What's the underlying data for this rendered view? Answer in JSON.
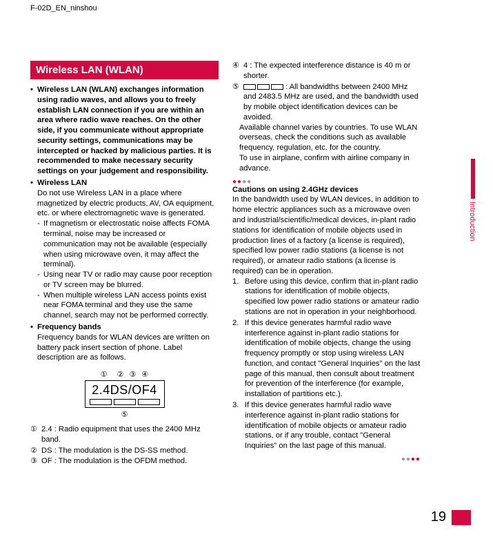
{
  "doc_header": "F-02D_EN_ninshou",
  "section_title": "Wireless LAN (WLAN)",
  "intro_bold": "Wireless LAN (WLAN) exchanges information using radio waves, and allows you to freely establish LAN connection if you are within an area where radio wave reaches. On the other side, if you communicate without appropriate security settings, communications may be intercepted or hacked by malicious parties. It is recommended to make necessary security settings on your judgement and responsibility.",
  "wlan_heading": "Wireless LAN",
  "wlan_body": "Do not use Wireless LAN in a place where magnetized by electric products, AV, OA equipment, etc. or where electromagnetic wave is generated.",
  "wlan_dash": [
    "If magnetism or electrostatic noise affects FOMA terminal, noise may be increased or communication may not be available (especially when using microwave oven, it may affect the terminal).",
    "Using near TV or radio may cause poor reception or TV screen may be blurred.",
    "When multiple wireless LAN access points exist near FOMA terminal and they use the same channel, search may not be performed correctly."
  ],
  "freq_heading": "Frequency bands",
  "freq_body": "Frequency bands for WLAN devices are written on battery pack insert section of phone. Label description are as follows.",
  "diagram": {
    "labels_top": [
      "①",
      "②",
      "③",
      "④"
    ],
    "text": "2.4DS/OF4",
    "label_bottom": "⑤"
  },
  "circled": [
    {
      "num": "①",
      "text": "2.4 : Radio equipment that uses the 2400 MHz band."
    },
    {
      "num": "②",
      "text": "DS : The modulation is the DS-SS method."
    },
    {
      "num": "③",
      "text": "OF : The modulation is the OFDM method."
    },
    {
      "num": "④",
      "text": "4 : The expected interference distance is 40 m or shorter."
    },
    {
      "num": "⑤",
      "text": " : All bandwidths between 2400 MHz and 2483.5 MHz are used, and the bandwidth used by mobile object identification devices can be avoided."
    }
  ],
  "col2_top": "Available channel varies by countries. To use WLAN overseas, check the conditions such as available frequency, regulation, etc. for the country.\nTo use in airplane, confirm with airline company in advance.",
  "cautions_heading": "Cautions on using 2.4GHz devices",
  "cautions_body": "In the bandwidth used by WLAN devices, in addition to home electric appliances such as a microwave oven and industrial/scientific/medical devices, in-plant radio stations for identification of mobile objects used in production lines of a factory (a license is required), specified low power radio stations (a license is not required), or amateur radio stations (a license is required) can be in operation.",
  "cautions_list": [
    "Before using this device, confirm that in-plant radio stations for identification of mobile objects, specified low power radio stations or amateur radio stations are not in operation in your neighborhood.",
    "If this device generates harmful radio wave interference against in-plant radio stations for identification of mobile objects, change the using frequency promptly or stop using wireless LAN function, and contact \"General Inquiries\" on the last page of this manual, then consult about treatment for prevention of the interference (for example, installation of partitions etc.).",
    "If this device generates harmful radio wave interference against in-plant radio stations for identification of mobile objects or amateur radio stations, or if any trouble, contact \"General Inquiries\" on the last page of this manual."
  ],
  "side_tab": "Introduction",
  "page_number": "19",
  "colors": {
    "accent": "#d20a41",
    "text": "#000000",
    "bg": "#ffffff",
    "grey": "#999999"
  }
}
